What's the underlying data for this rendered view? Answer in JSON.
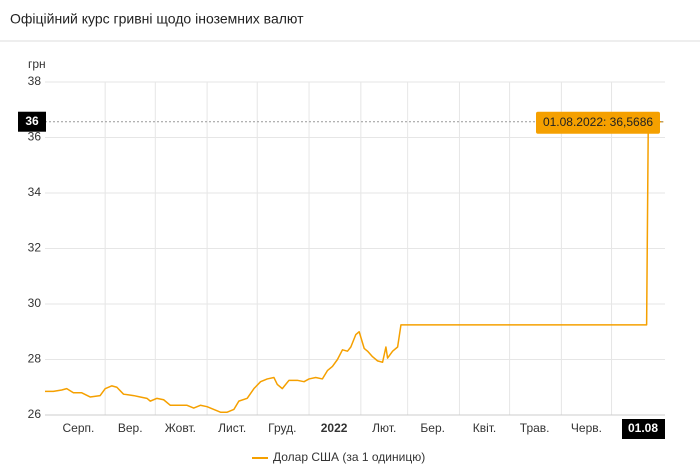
{
  "chart_data": {
    "type": "line",
    "title": "Офіційний курс гривні щодо іноземних валют",
    "y_label": "грн",
    "ylim": [
      26,
      38
    ],
    "yticks": [
      26,
      28,
      30,
      32,
      34,
      36,
      38
    ],
    "xlim": [
      -5,
      366
    ],
    "xticks": [
      {
        "value": 15,
        "label": "Серп."
      },
      {
        "value": 46,
        "label": "Вер."
      },
      {
        "value": 76,
        "label": "Жовт."
      },
      {
        "value": 107,
        "label": "Лист."
      },
      {
        "value": 137,
        "label": "Груд."
      },
      {
        "value": 168,
        "label": "2022"
      },
      {
        "value": 198,
        "label": "Лют."
      },
      {
        "value": 227,
        "label": "Бер."
      },
      {
        "value": 258,
        "label": "Квіт."
      },
      {
        "value": 288,
        "label": "Трав."
      },
      {
        "value": 319,
        "label": "Черв."
      }
    ],
    "xgrid": [
      31,
      61,
      92,
      122,
      153,
      184,
      212,
      243,
      273,
      304,
      334
    ],
    "grid": true,
    "legend": "bottom",
    "series": [
      {
        "name": "Долар США (за 1 одиницю)",
        "color": "#f5a000",
        "x": [
          -5,
          0,
          5,
          8,
          12,
          17,
          22,
          28,
          31,
          35,
          38,
          42,
          48,
          52,
          56,
          58,
          62,
          66,
          70,
          75,
          80,
          84,
          88,
          92,
          96,
          100,
          104,
          108,
          111,
          116,
          120,
          124,
          128,
          132,
          134,
          137,
          141,
          146,
          150,
          153,
          157,
          161,
          164,
          167,
          170,
          173,
          176,
          178,
          181,
          183,
          186,
          188,
          191,
          194,
          197,
          199,
          200,
          203,
          206,
          208,
          210,
          355,
          356,
          365
        ],
        "values": [
          26.85,
          26.85,
          26.9,
          26.95,
          26.8,
          26.8,
          26.65,
          26.7,
          26.95,
          27.05,
          27.0,
          26.75,
          26.7,
          26.65,
          26.6,
          26.5,
          26.6,
          26.55,
          26.35,
          26.35,
          26.35,
          26.25,
          26.35,
          26.3,
          26.2,
          26.1,
          26.1,
          26.2,
          26.5,
          26.6,
          26.95,
          27.2,
          27.3,
          27.35,
          27.1,
          26.95,
          27.25,
          27.25,
          27.2,
          27.3,
          27.35,
          27.3,
          27.6,
          27.75,
          28.0,
          28.35,
          28.3,
          28.45,
          28.9,
          29.0,
          28.4,
          28.3,
          28.1,
          27.95,
          27.9,
          28.45,
          28.05,
          28.3,
          28.45,
          29.25,
          29.25,
          29.25,
          36.5686,
          36.5686
        ]
      }
    ],
    "crosshair": {
      "y_label": "36",
      "x_label": "01.08",
      "tooltip": "01.08.2022: 36,5686"
    }
  }
}
